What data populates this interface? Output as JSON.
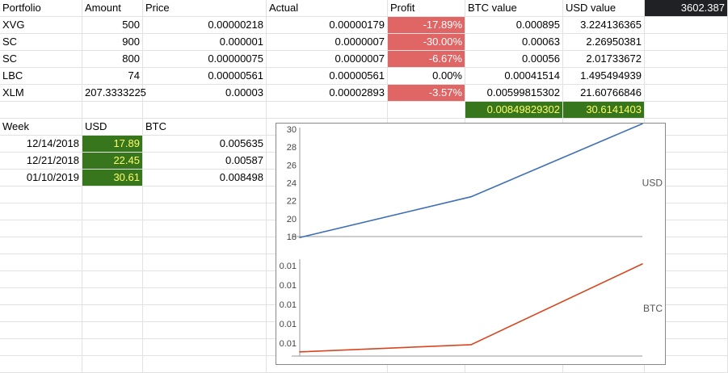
{
  "portfolio": {
    "headers": [
      "Portfolio",
      "Amount",
      "Price",
      "Actual",
      "Profit",
      "BTC value",
      "USD value"
    ],
    "btc_price": "3602.387",
    "rows": [
      {
        "coin": "XVG",
        "amount": "500",
        "price": "0.00000218",
        "actual": "0.00000179",
        "profit": "-17.89%",
        "btc": "0.000895",
        "usd": "3.224136365",
        "negative": true
      },
      {
        "coin": "SC",
        "amount": "900",
        "price": "0.000001",
        "actual": "0.0000007",
        "profit": "-30.00%",
        "btc": "0.00063",
        "usd": "2.26950381",
        "negative": true
      },
      {
        "coin": "SC",
        "amount": "800",
        "price": "0.00000075",
        "actual": "0.0000007",
        "profit": "-6.67%",
        "btc": "0.00056",
        "usd": "2.01733672",
        "negative": true
      },
      {
        "coin": "LBC",
        "amount": "74",
        "price": "0.00000561",
        "actual": "0.00000561",
        "profit": "0.00%",
        "btc": "0.00041514",
        "usd": "1.495494939",
        "negative": false
      },
      {
        "coin": "XLM",
        "amount": "207.3333225",
        "price": "0.00003",
        "actual": "0.00002893",
        "profit": "-3.57%",
        "btc": "0.00599815302",
        "usd": "21.60766846",
        "negative": true
      }
    ],
    "totals": {
      "btc": "0.00849829302",
      "usd": "30.6141403"
    }
  },
  "weekly": {
    "headers": [
      "Week",
      "USD",
      "BTC"
    ],
    "rows": [
      {
        "week": "12/14/2018",
        "usd": "17.89",
        "btc": "0.005635"
      },
      {
        "week": "12/21/2018",
        "usd": "22.45",
        "btc": "0.00587"
      },
      {
        "week": "01/10/2019",
        "usd": "30.61",
        "btc": "0.008498"
      }
    ]
  },
  "chart_data": {
    "type": "line",
    "categories": [
      "12/14/2018",
      "12/21/2018",
      "01/10/2019"
    ],
    "series": [
      {
        "name": "USD",
        "values": [
          17.89,
          22.45,
          30.61
        ],
        "color": "#3d6fb6",
        "ylim": [
          18,
          30
        ],
        "yticks": [
          "18",
          "20",
          "22",
          "24",
          "26",
          "28",
          "30"
        ]
      },
      {
        "name": "BTC",
        "values": [
          0.005635,
          0.00587,
          0.008498
        ],
        "color": "#d6461f",
        "ylim": [
          0.0055,
          0.0086
        ],
        "yticks": [
          "0.01",
          "0.01",
          "0.01",
          "0.01",
          "0.01"
        ]
      }
    ],
    "grid": false
  }
}
